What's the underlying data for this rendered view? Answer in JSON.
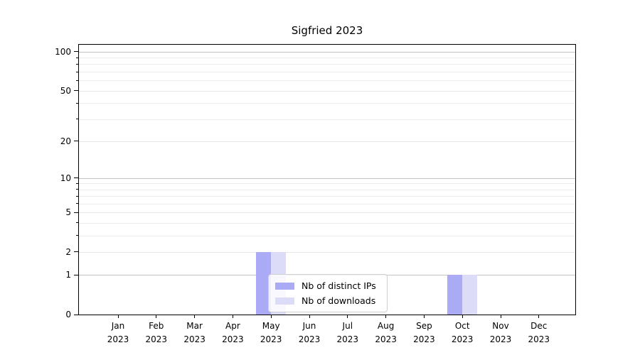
{
  "chart_data": {
    "type": "bar",
    "title": "Sigfried 2023",
    "categories": [
      "Jan 2023",
      "Feb 2023",
      "Mar 2023",
      "Apr 2023",
      "May 2023",
      "Jun 2023",
      "Jul 2023",
      "Aug 2023",
      "Sep 2023",
      "Oct 2023",
      "Nov 2023",
      "Dec 2023"
    ],
    "month_labels": [
      "Jan",
      "Feb",
      "Mar",
      "Apr",
      "May",
      "Jun",
      "Jul",
      "Aug",
      "Sep",
      "Oct",
      "Nov",
      "Dec"
    ],
    "year_label": "2023",
    "series": [
      {
        "name": "Nb of distinct IPs",
        "color": "#aaaaf5",
        "values": [
          0,
          0,
          0,
          0,
          2,
          0,
          0,
          0,
          0,
          1,
          0,
          0
        ]
      },
      {
        "name": "Nb of downloads",
        "color": "#dcdcf9",
        "values": [
          0,
          0,
          0,
          0,
          2,
          0,
          0,
          0,
          0,
          1,
          0,
          0
        ]
      }
    ],
    "xlabel": "",
    "ylabel": "",
    "yscale": "log1p",
    "ylim": [
      0,
      113
    ],
    "yticks": [
      0,
      1,
      2,
      5,
      10,
      20,
      50,
      100
    ],
    "minor_yticks": [
      3,
      4,
      6,
      7,
      8,
      9,
      30,
      40,
      60,
      70,
      80,
      90
    ],
    "decade_gridlines": [
      1,
      10,
      100
    ],
    "grid": true,
    "legend_position": "lower center inside",
    "grid_color_decade": "#c2c2c2",
    "grid_color_major": "#e7e7e7",
    "grid_color_minor": "#ececec"
  }
}
